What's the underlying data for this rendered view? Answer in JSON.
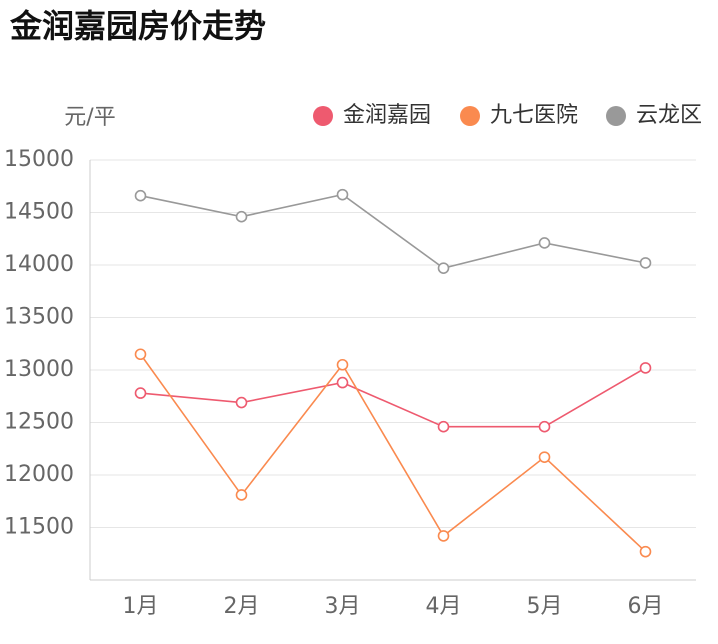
{
  "chart_data": {
    "type": "line",
    "title": "金润嘉园房价走势",
    "y_label": "元/平",
    "categories": [
      "1月",
      "2月",
      "3月",
      "4月",
      "5月",
      "6月"
    ],
    "series": [
      {
        "name": "金润嘉园",
        "color": "#ee5a6f",
        "values": [
          12780,
          12690,
          12880,
          12460,
          12460,
          13020
        ]
      },
      {
        "name": "九七医院",
        "color": "#fa8a4f",
        "values": [
          13150,
          11810,
          13050,
          11420,
          12170,
          11270
        ]
      },
      {
        "name": "云龙区",
        "color": "#999999",
        "values": [
          14660,
          14460,
          14670,
          13970,
          14210,
          14020
        ]
      }
    ],
    "ylim": [
      11000,
      15000
    ],
    "yticks": [
      11500,
      12000,
      12500,
      13000,
      13500,
      14000,
      14500,
      15000
    ],
    "grid": true
  }
}
